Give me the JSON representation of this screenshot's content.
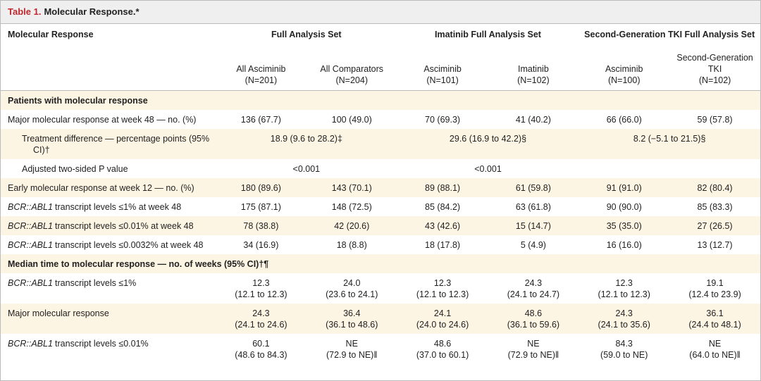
{
  "title": {
    "label": "Table 1.",
    "text": "Molecular Response.*"
  },
  "header": {
    "groups": [
      "Molecular Response",
      "Full Analysis Set",
      "Imatinib Full Analysis Set",
      "Second-Generation TKI Full Analysis Set"
    ],
    "columns": [
      {
        "name": "All Asciminib",
        "n": "(N=201)"
      },
      {
        "name": "All Comparators",
        "n": "(N=204)"
      },
      {
        "name": "Asciminib",
        "n": "(N=101)"
      },
      {
        "name": "Imatinib",
        "n": "(N=102)"
      },
      {
        "name": "Asciminib",
        "n": "(N=100)"
      },
      {
        "name": "Second-Generation TKI",
        "n": "(N=102)"
      }
    ]
  },
  "rows": [
    {
      "kind": "section",
      "label": "Patients with molecular response"
    },
    {
      "kind": "data",
      "label": "Major molecular response at week 48 — no. (%)",
      "values": [
        "136 (67.7)",
        "100 (49.0)",
        "70 (69.3)",
        "41 (40.2)",
        "66 (66.0)",
        "59 (57.8)"
      ]
    },
    {
      "kind": "span",
      "label": "Treatment difference — percentage points (95% CI)†",
      "values": [
        "18.9 (9.6 to 28.2)‡",
        "29.6 (16.9 to 42.2)§",
        "8.2 (−5.1 to 21.5)§"
      ]
    },
    {
      "kind": "span",
      "label": "Adjusted two-sided P value",
      "values": [
        "<0.001",
        "<0.001"
      ]
    },
    {
      "kind": "data",
      "label": "Early molecular response at week 12 — no. (%)",
      "values": [
        "180 (89.6)",
        "143 (70.1)",
        "89 (88.1)",
        "61 (59.8)",
        "91 (91.0)",
        "82 (80.4)"
      ]
    },
    {
      "kind": "data",
      "gene": "BCR::ABL1",
      "label": "transcript levels ≤1% at week 48",
      "values": [
        "175 (87.1)",
        "148 (72.5)",
        "85 (84.2)",
        "63 (61.8)",
        "90 (90.0)",
        "85 (83.3)"
      ]
    },
    {
      "kind": "data",
      "gene": "BCR::ABL1",
      "label": "transcript levels ≤0.01% at week 48",
      "values": [
        "78 (38.8)",
        "42 (20.6)",
        "43 (42.6)",
        "15 (14.7)",
        "35 (35.0)",
        "27 (26.5)"
      ]
    },
    {
      "kind": "data",
      "gene": "BCR::ABL1",
      "label": "transcript levels ≤0.0032% at week 48",
      "values": [
        "34 (16.9)",
        "18 (8.8)",
        "18 (17.8)",
        "5 (4.9)",
        "16 (16.0)",
        "13 (12.7)"
      ]
    },
    {
      "kind": "section",
      "label": "Median time to molecular response — no. of weeks (95% CI)†¶"
    },
    {
      "kind": "data",
      "gene": "BCR::ABL1",
      "label": "transcript levels ≤1%",
      "values": [
        "12.3\n(12.1 to 12.3)",
        "24.0\n(23.6 to 24.1)",
        "12.3\n(12.1 to 12.3)",
        "24.3\n(24.1 to 24.7)",
        "12.3\n(12.1 to 12.3)",
        "19.1\n(12.4 to 23.9)"
      ]
    },
    {
      "kind": "data",
      "label": "Major molecular response",
      "values": [
        "24.3\n(24.1 to 24.6)",
        "36.4\n(36.1 to 48.6)",
        "24.1\n(24.0 to 24.6)",
        "48.6\n(36.1 to 59.6)",
        "24.3\n(24.1 to 35.6)",
        "36.1\n(24.4 to 48.1)"
      ]
    },
    {
      "kind": "data",
      "gene": "BCR::ABL1",
      "label": "transcript levels ≤0.01%",
      "values": [
        "60.1\n(48.6 to 84.3)",
        "NE\n(72.9 to NE)‖",
        "48.6\n(37.0 to 60.1)",
        "NE\n(72.9 to NE)‖",
        "84.3\n(59.0 to NE)",
        "NE\n(64.0 to NE)‖"
      ]
    }
  ]
}
